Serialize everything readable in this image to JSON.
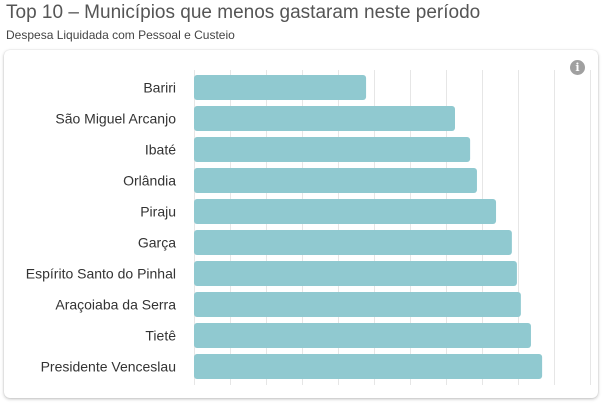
{
  "header": {
    "title": "Top 10 – Municípios que menos gastaram neste período",
    "subtitle": "Despesa Liquidada com Pessoal e Custeio"
  },
  "info_icon": {
    "name": "info-icon",
    "glyph": "i"
  },
  "colors": {
    "bar": "#90c9d0",
    "grid": "#e6e6e6",
    "label": "#333333"
  },
  "chart_data": {
    "type": "bar",
    "orientation": "horizontal",
    "title": "Top 10 – Municípios que menos gastaram neste período",
    "subtitle": "Despesa Liquidada com Pessoal e Custeio",
    "xlabel": "",
    "ylabel": "",
    "x_tick_labels_visible": false,
    "grid": true,
    "xlim": [
      0,
      11
    ],
    "grid_step": 1,
    "units": "relative (gridline units; axis values not shown)",
    "categories": [
      "Bariri",
      "São Miguel Arcanjo",
      "Ibaté",
      "Orlândia",
      "Piraju",
      "Garça",
      "Espírito Santo do Pinhal",
      "Araçoiaba da Serra",
      "Tietê",
      "Presidente Venceslau"
    ],
    "values": [
      4.78,
      7.25,
      7.67,
      7.86,
      8.39,
      8.83,
      8.97,
      9.08,
      9.36,
      9.67
    ]
  }
}
